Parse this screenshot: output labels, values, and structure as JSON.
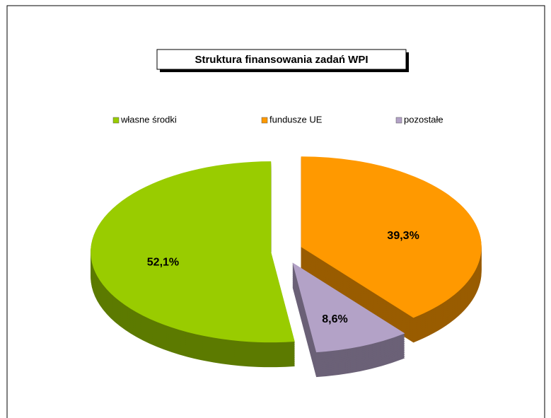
{
  "chart_data": {
    "type": "pie",
    "title": "Struktura finansowania zadań WPI",
    "categories": [
      "własne środki",
      "fundusze UE",
      "pozostałe"
    ],
    "values": [
      52.1,
      39.3,
      8.6
    ],
    "value_labels": [
      "52,1%",
      "39,3%",
      "8,6%"
    ],
    "colors": [
      "#99cc00",
      "#ff9900",
      "#b3a2c7"
    ],
    "legend": "top"
  }
}
